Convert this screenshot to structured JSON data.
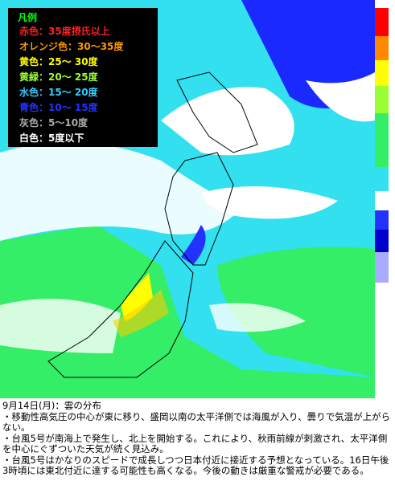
{
  "legend": {
    "title": "凡例",
    "items": [
      {
        "label": "赤色：35度摂氏以上",
        "color": "#ff2020"
      },
      {
        "label": "オレンジ色：30〜35度",
        "color": "#ff9900"
      },
      {
        "label": "黄色：25〜 30度",
        "color": "#ffff00"
      },
      {
        "label": "黄緑：20〜 25度",
        "color": "#99ff33"
      },
      {
        "label": "水色：15〜 20度",
        "color": "#33ccff"
      },
      {
        "label": "青色：10〜 15度",
        "color": "#2233ff"
      },
      {
        "label": "灰色：5〜10度",
        "color": "#aaaaaa"
      },
      {
        "label": "白色：5度以下",
        "color": "#ffffff"
      }
    ]
  },
  "caption": {
    "title": "9月14日(月)：雲の分布",
    "notes": [
      "・移動性高気圧の中心が東に移り、盛岡以南の太平洋側では海風が入り、曇りで気温が上がらない。",
      "・台風5号が南海上で発生し、北上を開始する。これにより、秋雨前線が刺激され、太平洋側を中心にぐずついた天気が続く見込み。",
      "・台風5号はかなりのスピードで成長しつつ日本付近に接近する予想となっている。16日午後3時頃には東北付近に達する可能性も高くなる。今後の動きは厳重な警戒が必要である。"
    ]
  }
}
